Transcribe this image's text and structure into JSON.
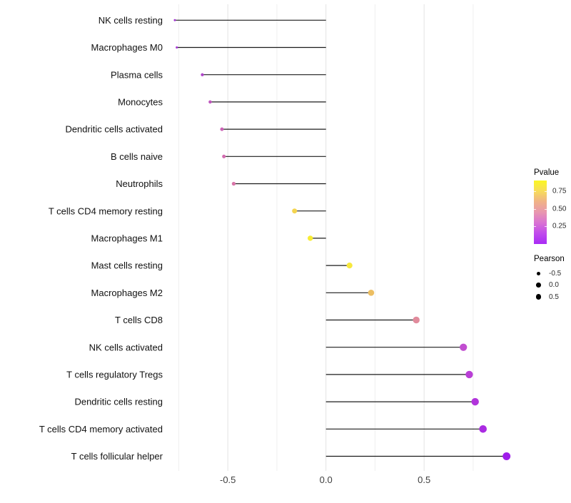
{
  "background_color": "#ffffff",
  "chart_data": {
    "type": "scatter",
    "variant": "lollipop",
    "title": "",
    "xlabel": "",
    "ylabel": "",
    "grid": "vertical light-grey gridlines, no axis lines, white background",
    "categories": [
      "NK cells resting",
      "Macrophages M0",
      "Plasma cells",
      "Monocytes",
      "Dendritic cells activated",
      "B cells naive",
      "Neutrophils",
      "T cells CD4 memory resting",
      "Macrophages M1",
      "Mast cells resting",
      "Macrophages M2",
      "T cells CD8",
      "NK cells activated",
      "T cells regulatory  Tregs",
      "Dendritic cells resting",
      "T cells CD4 memory activated",
      "T cells follicular helper"
    ],
    "points": [
      {
        "label": "NK cells resting",
        "pearson": -0.77,
        "color": "#A637D4"
      },
      {
        "label": "Macrophages M0",
        "pearson": -0.76,
        "color": "#A637D4"
      },
      {
        "label": "Plasma cells",
        "pearson": -0.63,
        "color": "#AE45C9"
      },
      {
        "label": "Monocytes",
        "pearson": -0.59,
        "color": "#BF57BE"
      },
      {
        "label": "Dendritic cells activated",
        "pearson": -0.53,
        "color": "#CB63B6"
      },
      {
        "label": "B cells naive",
        "pearson": -0.52,
        "color": "#D26CB0"
      },
      {
        "label": "Neutrophils",
        "pearson": -0.47,
        "color": "#D875A8"
      },
      {
        "label": "T cells CD4 memory resting",
        "pearson": -0.16,
        "color": "#F4D44E"
      },
      {
        "label": "Macrophages M1",
        "pearson": -0.08,
        "color": "#F8EC33"
      },
      {
        "label": "Mast cells resting",
        "pearson": 0.12,
        "color": "#F7E83D"
      },
      {
        "label": "Macrophages M2",
        "pearson": 0.23,
        "color": "#ECBE62"
      },
      {
        "label": "T cells CD8",
        "pearson": 0.46,
        "color": "#E18B9C"
      },
      {
        "label": "NK cells activated",
        "pearson": 0.7,
        "color": "#C14DD0"
      },
      {
        "label": "T cells regulatory  Tregs",
        "pearson": 0.73,
        "color": "#B93FD6"
      },
      {
        "label": "Dendritic cells resting",
        "pearson": 0.76,
        "color": "#B134DB"
      },
      {
        "label": "T cells CD4 memory activated",
        "pearson": 0.8,
        "color": "#AA2BE2"
      },
      {
        "label": "T cells follicular helper",
        "pearson": 0.92,
        "color": "#9F1DEA"
      }
    ],
    "xaxis": {
      "lim": [
        -0.85,
        1.0
      ],
      "ticks": [
        -0.5,
        0.0,
        0.5
      ],
      "tick_labels": [
        "-0.5",
        "0.0",
        "0.5"
      ],
      "minor_ticks": [
        -0.75,
        -0.25,
        0.25,
        0.75
      ]
    },
    "legend_pvalue": {
      "title": "Pvalue",
      "tick_labels": [
        "0.75",
        "0.50",
        "0.25"
      ],
      "range_top_to_bottom": [
        0.9,
        0.0
      ],
      "gradient_top_to_bottom": [
        "#FBF722",
        "#F7DC5A",
        "#F0B287",
        "#E897AF",
        "#D972D3",
        "#C04BEC",
        "#A92BF5"
      ]
    },
    "legend_pearson": {
      "title": "Pearson",
      "items": [
        {
          "label": "-0.5",
          "pearson": -0.5
        },
        {
          "label": "0.0",
          "pearson": 0.0
        },
        {
          "label": "0.5",
          "pearson": 0.5
        }
      ],
      "dot_color": "#000000"
    },
    "stem_color": "#1B1B1B",
    "gridline_major_color": "#E3E3E3",
    "gridline_minor_color": "#EFEFEF"
  }
}
